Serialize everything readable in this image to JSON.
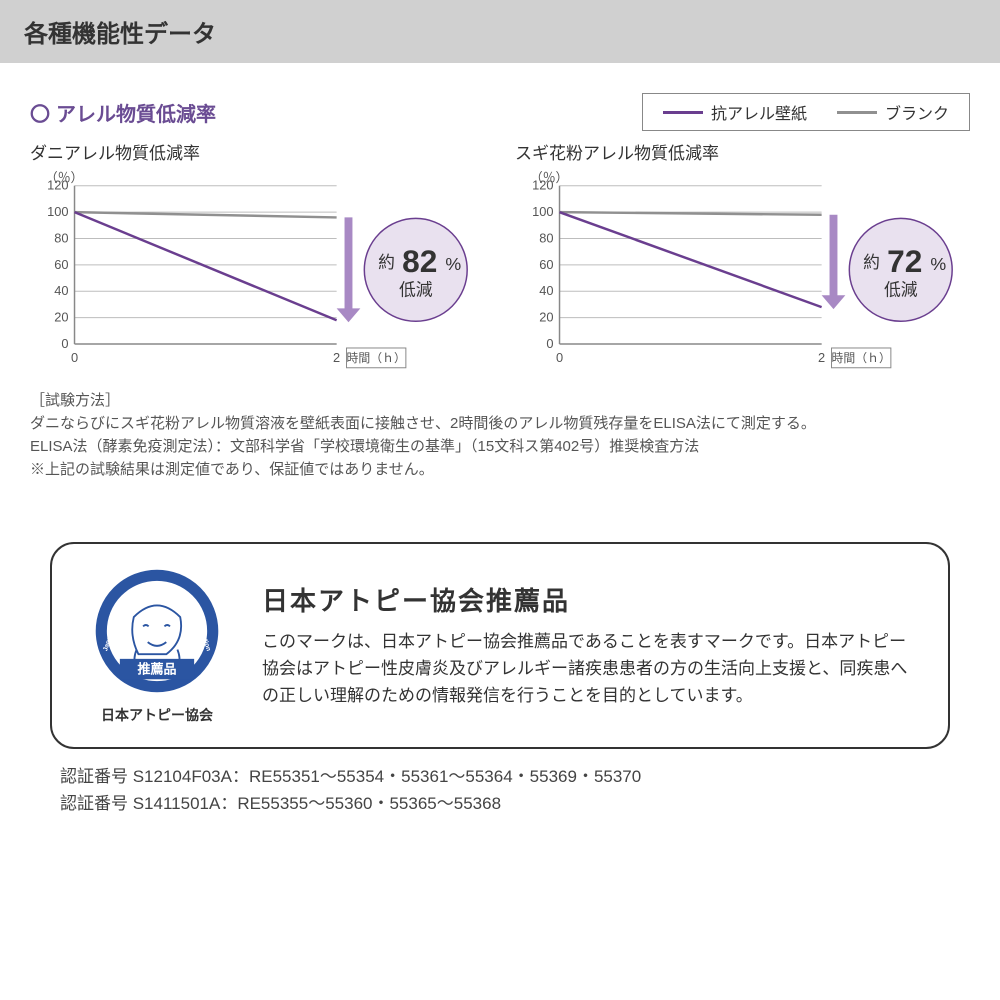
{
  "header": {
    "title": "各種機能性データ"
  },
  "section": {
    "bullet": "〇",
    "title": "アレル物質低減率"
  },
  "legend": {
    "items": [
      {
        "label": "抗アレル壁紙",
        "color": "#6a3e8f",
        "width": 3
      },
      {
        "label": "ブランク",
        "color": "#909090",
        "width": 3
      }
    ]
  },
  "charts": [
    {
      "title": "ダニアレル物質低減率",
      "y_unit": "（％）",
      "ylim": [
        0,
        120
      ],
      "ytick_step": 20,
      "xlabel_unit": "時間（ｈ）",
      "xticks": [
        0,
        2
      ],
      "series": [
        {
          "name": "blank",
          "color": "#909090",
          "width": 2.5,
          "points": [
            [
              0,
              100
            ],
            [
              2,
              96
            ]
          ]
        },
        {
          "name": "product",
          "color": "#6a3e8f",
          "width": 2.5,
          "points": [
            [
              0,
              100
            ],
            [
              2,
              18
            ]
          ]
        }
      ],
      "callout": {
        "prefix": "約",
        "value": "82",
        "percent": "%",
        "suffix": "低減",
        "circle_fill": "#e9e1ef",
        "circle_stroke": "#6a3e8f",
        "arrow_color": "#a889c4"
      },
      "grid_color": "#bdbdbd",
      "axis_color": "#888888",
      "background": "#ffffff",
      "label_fontsize": 13,
      "tick_fontsize": 13
    },
    {
      "title": "スギ花粉アレル物質低減率",
      "y_unit": "（％）",
      "ylim": [
        0,
        120
      ],
      "ytick_step": 20,
      "xlabel_unit": "時間（ｈ）",
      "xticks": [
        0,
        2
      ],
      "series": [
        {
          "name": "blank",
          "color": "#909090",
          "width": 2.5,
          "points": [
            [
              0,
              100
            ],
            [
              2,
              98
            ]
          ]
        },
        {
          "name": "product",
          "color": "#6a3e8f",
          "width": 2.5,
          "points": [
            [
              0,
              100
            ],
            [
              2,
              28
            ]
          ]
        }
      ],
      "callout": {
        "prefix": "約",
        "value": "72",
        "percent": "%",
        "suffix": "低減",
        "circle_fill": "#e9e1ef",
        "circle_stroke": "#6a3e8f",
        "arrow_color": "#a889c4"
      },
      "grid_color": "#bdbdbd",
      "axis_color": "#888888",
      "background": "#ffffff",
      "label_fontsize": 13,
      "tick_fontsize": 13
    }
  ],
  "method": {
    "label": "［試験方法］",
    "line1": "ダニならびにスギ花粉アレル物質溶液を壁紙表面に接触させ、2時間後のアレル物質残存量をELISA法にて測定する。",
    "line2": "ELISA法（酵素免疫測定法）：文部科学省「学校環境衛生の基準」（15文科ス第402号）推奨検査方法",
    "note": "※上記の試験結果は測定値であり、保証値ではありません。"
  },
  "certification": {
    "logo": {
      "ring_text_top": "Atopic Dermatitis Patients",
      "ring_text_side_l": "Japan",
      "ring_text_side_r": "Association",
      "banner": "推薦品",
      "caption": "日本アトピー協会",
      "ring_color": "#2b55a2",
      "figure_color": "#2b55a2"
    },
    "title": "日本アトピー協会推薦品",
    "desc": "このマークは、日本アトピー協会推薦品であることを表すマークです。日本アトピー協会はアトピー性皮膚炎及びアレルギー諸疾患患者の方の生活向上支援と、同疾患への正しい理解のための情報発信を行うことを目的としています。"
  },
  "cert_numbers": {
    "line1": "認証番号 S12104F03A：RE55351～55354・55361～55364・55369・55370",
    "line2": "認証番号 S1411501A：RE55355～55360・55365～55368"
  }
}
